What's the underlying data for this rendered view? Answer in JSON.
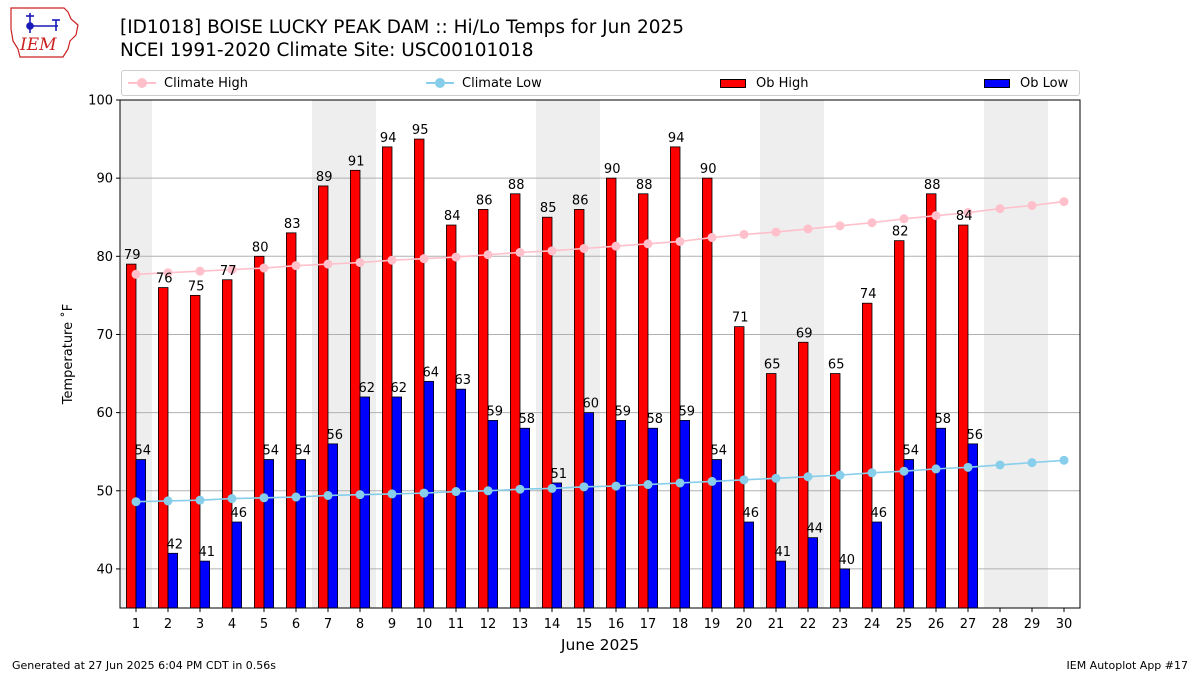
{
  "header": {
    "title": "[ID1018] BOISE LUCKY PEAK DAM :: Hi/Lo Temps for Jun 2025",
    "subtitle": "NCEI 1991-2020 Climate Site: USC00101018"
  },
  "logo": {
    "text": "IEM",
    "icon": "iowa-state-outline-logo"
  },
  "footer": {
    "left": "Generated at 27 Jun 2025 6:04 PM CDT in 0.56s",
    "right": "IEM Autoplot App #17"
  },
  "chart_data": {
    "type": "bar",
    "xlabel": "June 2025",
    "ylabel": "Temperature ˚F",
    "ylim": [
      35,
      100
    ],
    "xlim": [
      0.5,
      30.5
    ],
    "yticks": [
      40,
      50,
      60,
      70,
      80,
      90,
      100
    ],
    "categories": [
      "1",
      "2",
      "3",
      "4",
      "5",
      "6",
      "7",
      "8",
      "9",
      "10",
      "11",
      "12",
      "13",
      "14",
      "15",
      "16",
      "17",
      "18",
      "19",
      "20",
      "21",
      "22",
      "23",
      "24",
      "25",
      "26",
      "27",
      "28",
      "29",
      "30"
    ],
    "weekend_days": [
      1,
      7,
      8,
      14,
      15,
      21,
      22,
      28,
      29
    ],
    "grid": "horizontal",
    "legend_position": "top",
    "series": [
      {
        "name": "Ob High",
        "kind": "bar",
        "color": "#ff0000",
        "values": [
          79,
          76,
          75,
          77,
          80,
          83,
          89,
          91,
          94,
          95,
          84,
          86,
          88,
          85,
          86,
          90,
          88,
          94,
          90,
          71,
          65,
          69,
          65,
          74,
          82,
          88,
          84,
          null,
          null,
          null
        ]
      },
      {
        "name": "Ob Low",
        "kind": "bar",
        "color": "#0000ff",
        "values": [
          54,
          42,
          41,
          46,
          54,
          54,
          56,
          62,
          62,
          64,
          63,
          59,
          58,
          51,
          60,
          59,
          58,
          59,
          54,
          46,
          41,
          44,
          40,
          46,
          54,
          58,
          56,
          null,
          null,
          null
        ]
      },
      {
        "name": "Climate High",
        "kind": "line",
        "color": "#ffc0cb",
        "values": [
          77.7,
          77.9,
          78.1,
          78.3,
          78.5,
          78.8,
          79.0,
          79.2,
          79.5,
          79.7,
          79.9,
          80.2,
          80.5,
          80.7,
          81.0,
          81.3,
          81.6,
          81.9,
          82.4,
          82.8,
          83.1,
          83.5,
          83.9,
          84.3,
          84.8,
          85.2,
          85.6,
          86.1,
          86.5,
          87.0
        ]
      },
      {
        "name": "Climate Low",
        "kind": "line",
        "color": "#87ceeb",
        "values": [
          48.6,
          48.7,
          48.8,
          49.0,
          49.1,
          49.2,
          49.4,
          49.5,
          49.6,
          49.7,
          49.9,
          50.0,
          50.2,
          50.3,
          50.5,
          50.6,
          50.8,
          51.0,
          51.2,
          51.4,
          51.6,
          51.8,
          52.0,
          52.3,
          52.5,
          52.8,
          53.0,
          53.3,
          53.6,
          53.9
        ]
      }
    ]
  }
}
